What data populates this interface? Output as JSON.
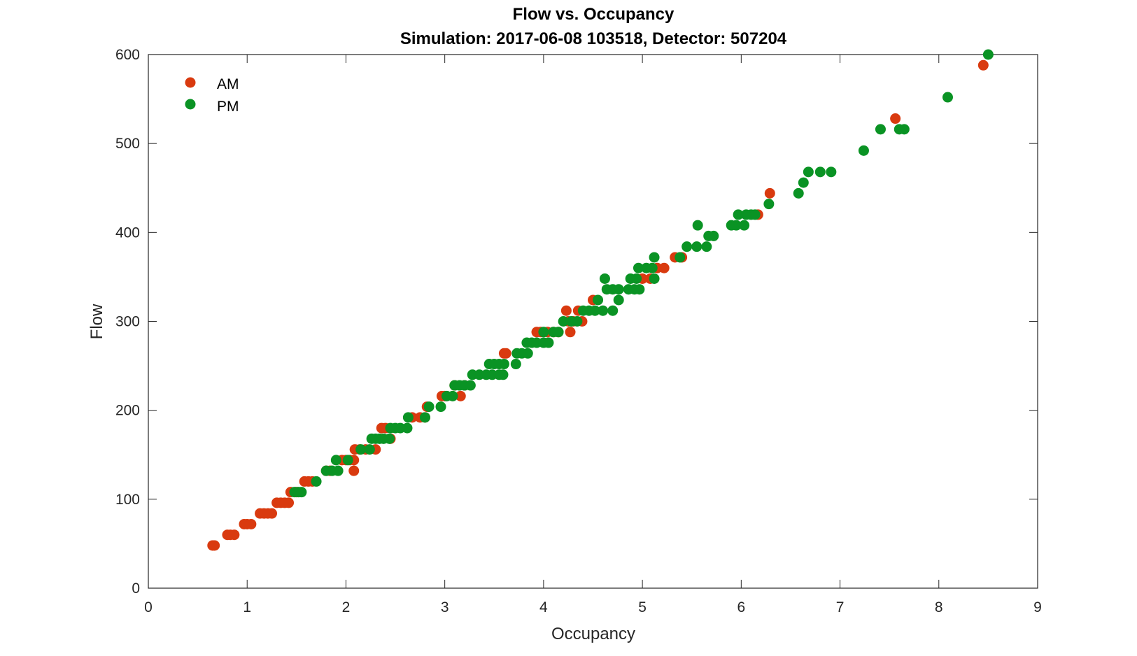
{
  "chart_data": {
    "type": "scatter",
    "title": "Flow vs. Occupancy",
    "subtitle": "Simulation:  2017-06-08 103518,  Detector:  507204",
    "xlabel": "Occupancy",
    "ylabel": "Flow",
    "xlim": [
      0,
      9
    ],
    "ylim": [
      0,
      600
    ],
    "xticks": [
      "0",
      "1",
      "2",
      "3",
      "4",
      "5",
      "6",
      "7",
      "8",
      "9"
    ],
    "yticks": [
      "0",
      "100",
      "200",
      "300",
      "400",
      "500",
      "600"
    ],
    "grid": false,
    "legend_position": "top-left",
    "series": [
      {
        "name": "AM",
        "color": "#d93a0f",
        "points": [
          [
            0.65,
            48
          ],
          [
            0.67,
            48
          ],
          [
            0.8,
            60
          ],
          [
            0.83,
            60
          ],
          [
            0.87,
            60
          ],
          [
            0.97,
            72
          ],
          [
            1.0,
            72
          ],
          [
            1.04,
            72
          ],
          [
            1.13,
            84
          ],
          [
            1.17,
            84
          ],
          [
            1.21,
            84
          ],
          [
            1.25,
            84
          ],
          [
            1.3,
            96
          ],
          [
            1.34,
            96
          ],
          [
            1.38,
            96
          ],
          [
            1.42,
            96
          ],
          [
            1.44,
            108
          ],
          [
            1.5,
            108
          ],
          [
            1.58,
            120
          ],
          [
            1.62,
            120
          ],
          [
            1.66,
            120
          ],
          [
            1.8,
            132
          ],
          [
            1.84,
            132
          ],
          [
            2.08,
            132
          ],
          [
            1.96,
            144
          ],
          [
            2.0,
            144
          ],
          [
            2.04,
            144
          ],
          [
            2.08,
            144
          ],
          [
            2.09,
            156
          ],
          [
            2.14,
            156
          ],
          [
            2.2,
            156
          ],
          [
            2.3,
            156
          ],
          [
            2.36,
            180
          ],
          [
            2.4,
            180
          ],
          [
            2.45,
            168
          ],
          [
            2.67,
            192
          ],
          [
            2.75,
            192
          ],
          [
            2.8,
            192
          ],
          [
            2.82,
            204
          ],
          [
            2.97,
            216
          ],
          [
            3.0,
            216
          ],
          [
            3.16,
            216
          ],
          [
            3.1,
            228
          ],
          [
            3.2,
            228
          ],
          [
            3.6,
            264
          ],
          [
            3.62,
            264
          ],
          [
            3.93,
            288
          ],
          [
            3.97,
            288
          ],
          [
            4.04,
            288
          ],
          [
            4.1,
            288
          ],
          [
            4.15,
            288
          ],
          [
            4.27,
            288
          ],
          [
            4.23,
            312
          ],
          [
            4.35,
            312
          ],
          [
            4.25,
            300
          ],
          [
            4.3,
            300
          ],
          [
            4.39,
            300
          ],
          [
            4.5,
            324
          ],
          [
            5.0,
            348
          ],
          [
            5.08,
            348
          ],
          [
            5.15,
            360
          ],
          [
            5.22,
            360
          ],
          [
            5.33,
            372
          ],
          [
            5.4,
            372
          ],
          [
            6.17,
            420
          ],
          [
            6.29,
            444
          ],
          [
            7.56,
            528
          ],
          [
            8.45,
            588
          ]
        ]
      },
      {
        "name": "PM",
        "color": "#0a9324",
        "points": [
          [
            1.48,
            108
          ],
          [
            1.52,
            108
          ],
          [
            1.55,
            108
          ],
          [
            1.7,
            120
          ],
          [
            1.8,
            132
          ],
          [
            1.86,
            132
          ],
          [
            1.92,
            132
          ],
          [
            1.9,
            144
          ],
          [
            2.02,
            144
          ],
          [
            2.15,
            156
          ],
          [
            2.24,
            156
          ],
          [
            2.26,
            168
          ],
          [
            2.3,
            168
          ],
          [
            2.34,
            168
          ],
          [
            2.38,
            168
          ],
          [
            2.44,
            168
          ],
          [
            2.45,
            180
          ],
          [
            2.5,
            180
          ],
          [
            2.55,
            180
          ],
          [
            2.62,
            180
          ],
          [
            2.63,
            192
          ],
          [
            2.8,
            192
          ],
          [
            2.84,
            204
          ],
          [
            2.96,
            204
          ],
          [
            3.02,
            216
          ],
          [
            3.08,
            216
          ],
          [
            3.1,
            228
          ],
          [
            3.15,
            228
          ],
          [
            3.2,
            228
          ],
          [
            3.26,
            228
          ],
          [
            3.28,
            240
          ],
          [
            3.35,
            240
          ],
          [
            3.42,
            240
          ],
          [
            3.48,
            240
          ],
          [
            3.55,
            240
          ],
          [
            3.59,
            240
          ],
          [
            3.45,
            252
          ],
          [
            3.5,
            252
          ],
          [
            3.55,
            252
          ],
          [
            3.6,
            252
          ],
          [
            3.72,
            252
          ],
          [
            3.73,
            264
          ],
          [
            3.78,
            264
          ],
          [
            3.84,
            264
          ],
          [
            3.83,
            276
          ],
          [
            3.88,
            276
          ],
          [
            3.93,
            276
          ],
          [
            4.0,
            276
          ],
          [
            4.05,
            276
          ],
          [
            4.0,
            288
          ],
          [
            4.1,
            288
          ],
          [
            4.15,
            288
          ],
          [
            4.2,
            300
          ],
          [
            4.28,
            300
          ],
          [
            4.34,
            300
          ],
          [
            4.4,
            312
          ],
          [
            4.46,
            312
          ],
          [
            4.52,
            312
          ],
          [
            4.6,
            312
          ],
          [
            4.7,
            312
          ],
          [
            4.55,
            324
          ],
          [
            4.76,
            324
          ],
          [
            4.64,
            336
          ],
          [
            4.7,
            336
          ],
          [
            4.76,
            336
          ],
          [
            4.86,
            336
          ],
          [
            4.92,
            336
          ],
          [
            4.97,
            336
          ],
          [
            4.62,
            348
          ],
          [
            4.88,
            348
          ],
          [
            4.94,
            348
          ],
          [
            5.12,
            348
          ],
          [
            4.96,
            360
          ],
          [
            5.04,
            360
          ],
          [
            5.1,
            360
          ],
          [
            5.12,
            372
          ],
          [
            5.38,
            372
          ],
          [
            5.45,
            384
          ],
          [
            5.55,
            384
          ],
          [
            5.65,
            384
          ],
          [
            5.67,
            396
          ],
          [
            5.72,
            396
          ],
          [
            5.56,
            408
          ],
          [
            5.9,
            408
          ],
          [
            5.95,
            408
          ],
          [
            6.03,
            408
          ],
          [
            5.97,
            420
          ],
          [
            6.05,
            420
          ],
          [
            6.1,
            420
          ],
          [
            6.14,
            420
          ],
          [
            6.28,
            432
          ],
          [
            6.58,
            444
          ],
          [
            6.63,
            456
          ],
          [
            6.68,
            468
          ],
          [
            6.8,
            468
          ],
          [
            6.91,
            468
          ],
          [
            7.24,
            492
          ],
          [
            7.41,
            516
          ],
          [
            7.6,
            516
          ],
          [
            7.65,
            516
          ],
          [
            8.09,
            552
          ],
          [
            8.5,
            600
          ]
        ]
      }
    ]
  }
}
